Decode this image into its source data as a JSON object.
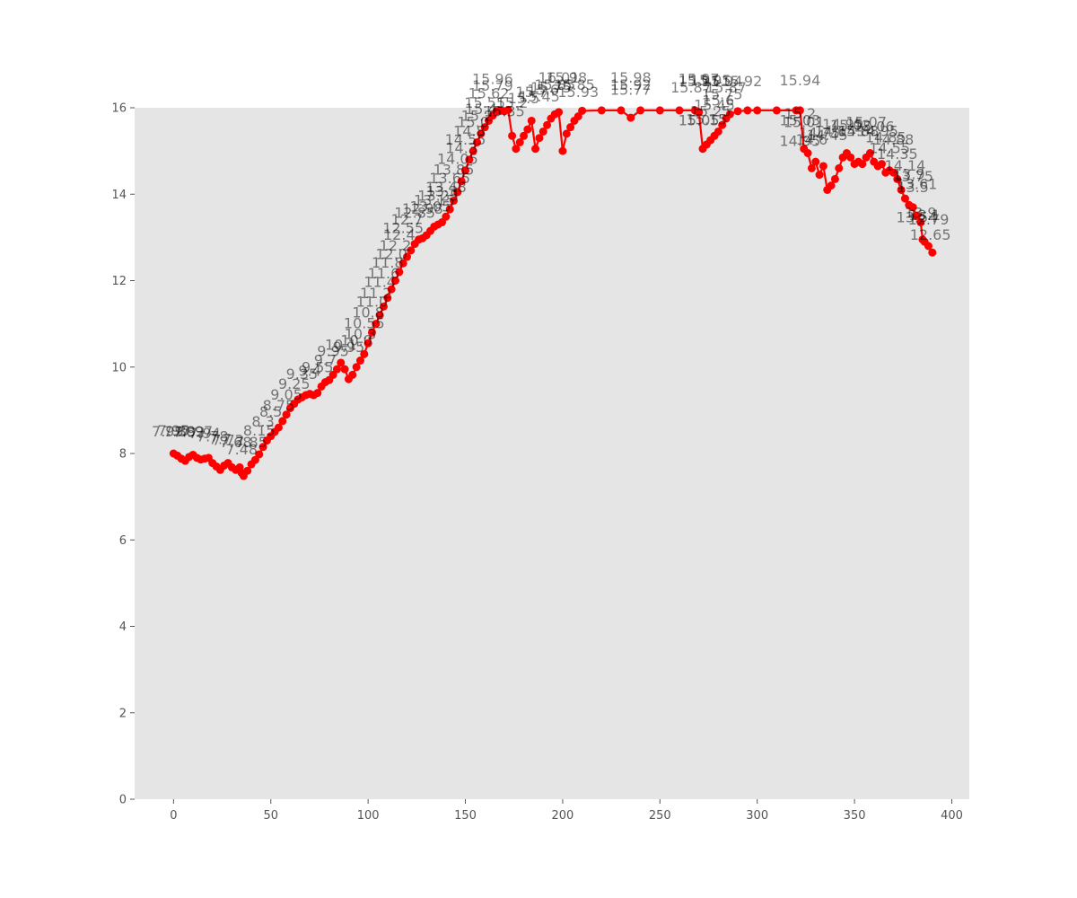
{
  "chart_data": {
    "type": "line",
    "title": "",
    "xlabel": "",
    "ylabel": "",
    "xlim": [
      -20,
      409
    ],
    "ylim": [
      0,
      16
    ],
    "xticks": [
      0,
      50,
      100,
      150,
      200,
      250,
      300,
      350,
      400
    ],
    "yticks": [
      0,
      2,
      4,
      6,
      8,
      10,
      12,
      14,
      16
    ],
    "grid": false,
    "legend": "none",
    "colors": {
      "background": "#e5e5e5",
      "series": "#ff0000",
      "tick_text": "#555555",
      "label_text": "#808080"
    },
    "series": [
      {
        "marker": "circle",
        "points": [
          [
            0,
            8.0
          ],
          [
            2,
            7.95
          ],
          [
            4,
            7.88
          ],
          [
            6,
            7.83
          ],
          [
            8,
            7.92
          ],
          [
            10,
            7.97
          ],
          [
            12,
            7.9
          ],
          [
            14,
            7.86
          ],
          [
            16,
            7.88
          ],
          [
            18,
            7.9
          ],
          [
            20,
            7.78
          ],
          [
            22,
            7.7
          ],
          [
            24,
            7.62
          ],
          [
            26,
            7.72
          ],
          [
            28,
            7.78
          ],
          [
            30,
            7.68
          ],
          [
            32,
            7.62
          ],
          [
            34,
            7.68
          ],
          [
            35,
            7.55
          ],
          [
            36,
            7.48
          ],
          [
            38,
            7.6
          ],
          [
            40,
            7.75
          ],
          [
            42,
            7.85
          ],
          [
            44,
            7.98
          ],
          [
            46,
            8.15
          ],
          [
            48,
            8.3
          ],
          [
            50,
            8.4
          ],
          [
            52,
            8.5
          ],
          [
            54,
            8.6
          ],
          [
            56,
            8.75
          ],
          [
            58,
            8.9
          ],
          [
            60,
            9.05
          ],
          [
            62,
            9.15
          ],
          [
            64,
            9.25
          ],
          [
            66,
            9.3
          ],
          [
            68,
            9.35
          ],
          [
            70,
            9.38
          ],
          [
            72,
            9.35
          ],
          [
            74,
            9.4
          ],
          [
            76,
            9.55
          ],
          [
            78,
            9.65
          ],
          [
            80,
            9.7
          ],
          [
            82,
            9.82
          ],
          [
            84,
            9.95
          ],
          [
            86,
            10.1
          ],
          [
            88,
            9.95
          ],
          [
            90,
            9.72
          ],
          [
            92,
            9.82
          ],
          [
            94,
            10.0
          ],
          [
            96,
            10.15
          ],
          [
            98,
            10.3
          ],
          [
            100,
            10.55
          ],
          [
            102,
            10.8
          ],
          [
            104,
            11.0
          ],
          [
            106,
            11.2
          ],
          [
            108,
            11.4
          ],
          [
            110,
            11.6
          ],
          [
            112,
            11.8
          ],
          [
            114,
            12.0
          ],
          [
            116,
            12.2
          ],
          [
            118,
            12.4
          ],
          [
            120,
            12.55
          ],
          [
            122,
            12.7
          ],
          [
            124,
            12.85
          ],
          [
            126,
            12.95
          ],
          [
            128,
            12.98
          ],
          [
            130,
            13.05
          ],
          [
            132,
            13.15
          ],
          [
            134,
            13.25
          ],
          [
            136,
            13.3
          ],
          [
            138,
            13.35
          ],
          [
            140,
            13.48
          ],
          [
            142,
            13.65
          ],
          [
            144,
            13.85
          ],
          [
            146,
            14.05
          ],
          [
            148,
            14.3
          ],
          [
            150,
            14.55
          ],
          [
            152,
            14.8
          ],
          [
            154,
            15.0
          ],
          [
            156,
            15.2
          ],
          [
            158,
            15.4
          ],
          [
            160,
            15.55
          ],
          [
            162,
            15.7
          ],
          [
            164,
            15.82
          ],
          [
            166,
            15.92
          ],
          [
            168,
            15.93
          ],
          [
            170,
            15.92
          ],
          [
            172,
            15.95
          ],
          [
            174,
            15.35
          ],
          [
            176,
            15.05
          ],
          [
            178,
            15.2
          ],
          [
            180,
            15.35
          ],
          [
            182,
            15.5
          ],
          [
            184,
            15.7
          ],
          [
            186,
            15.05
          ],
          [
            188,
            15.3
          ],
          [
            190,
            15.45
          ],
          [
            192,
            15.6
          ],
          [
            194,
            15.75
          ],
          [
            196,
            15.85
          ],
          [
            198,
            15.9
          ],
          [
            200,
            15.0
          ],
          [
            202,
            15.4
          ],
          [
            204,
            15.55
          ],
          [
            206,
            15.7
          ],
          [
            208,
            15.8
          ],
          [
            210,
            15.93
          ],
          [
            220,
            15.94
          ],
          [
            230,
            15.94
          ],
          [
            235,
            15.77
          ],
          [
            240,
            15.94
          ],
          [
            250,
            15.94
          ],
          [
            260,
            15.94
          ],
          [
            268,
            15.94
          ],
          [
            270,
            15.9
          ],
          [
            272,
            15.05
          ],
          [
            274,
            15.15
          ],
          [
            276,
            15.25
          ],
          [
            278,
            15.35
          ],
          [
            280,
            15.45
          ],
          [
            282,
            15.6
          ],
          [
            284,
            15.75
          ],
          [
            286,
            15.85
          ],
          [
            290,
            15.92
          ],
          [
            295,
            15.94
          ],
          [
            300,
            15.94
          ],
          [
            310,
            15.94
          ],
          [
            320,
            15.94
          ],
          [
            322,
            15.94
          ],
          [
            324,
            15.05
          ],
          [
            326,
            14.95
          ],
          [
            328,
            14.6
          ],
          [
            330,
            14.75
          ],
          [
            332,
            14.45
          ],
          [
            334,
            14.65
          ],
          [
            336,
            14.1
          ],
          [
            338,
            14.2
          ],
          [
            340,
            14.35
          ],
          [
            342,
            14.6
          ],
          [
            344,
            14.85
          ],
          [
            346,
            14.95
          ],
          [
            348,
            14.85
          ],
          [
            350,
            14.7
          ],
          [
            352,
            14.75
          ],
          [
            354,
            14.7
          ],
          [
            356,
            14.85
          ],
          [
            358,
            14.95
          ],
          [
            360,
            14.75
          ],
          [
            362,
            14.65
          ],
          [
            364,
            14.7
          ],
          [
            366,
            14.5
          ],
          [
            368,
            14.55
          ],
          [
            370,
            14.5
          ],
          [
            372,
            14.35
          ],
          [
            374,
            14.1
          ],
          [
            376,
            13.9
          ],
          [
            378,
            13.75
          ],
          [
            380,
            13.7
          ],
          [
            382,
            13.5
          ],
          [
            384,
            13.35
          ],
          [
            385,
            12.95
          ],
          [
            386,
            12.9
          ],
          [
            388,
            12.8
          ],
          [
            390,
            12.65
          ]
        ],
        "labels": [
          [
            "7.99",
            -3,
            8.4
          ],
          [
            "7.95",
            0,
            8.42
          ],
          [
            "7.88",
            3,
            8.4
          ],
          [
            "7.92",
            8,
            8.38
          ],
          [
            "7.97",
            12,
            8.4
          ],
          [
            "7.94",
            16,
            8.35
          ],
          [
            "7.78",
            20,
            8.28
          ],
          [
            "7.7",
            24,
            8.22
          ],
          [
            "7.72",
            28,
            8.2
          ],
          [
            "7.68",
            32,
            8.15
          ],
          [
            "7.48",
            35,
            7.98
          ],
          [
            "7.85",
            40,
            8.15
          ],
          [
            "8.15",
            44,
            8.42
          ],
          [
            "8.3",
            46,
            8.62
          ],
          [
            "8.5",
            50,
            8.85
          ],
          [
            "8.75",
            54,
            9.0
          ],
          [
            "9.05",
            58,
            9.25
          ],
          [
            "9.25",
            62,
            9.5
          ],
          [
            "9.35",
            66,
            9.72
          ],
          [
            "9.4",
            70,
            9.8
          ],
          [
            "9.55",
            74,
            9.88
          ],
          [
            "9.7",
            78,
            10.05
          ],
          [
            "9.95",
            82,
            10.25
          ],
          [
            "10.1",
            86,
            10.4
          ],
          [
            "9.95",
            90,
            10.35
          ],
          [
            "10.0",
            94,
            10.5
          ],
          [
            "10.3",
            96,
            10.65
          ],
          [
            "10.55",
            98,
            10.9
          ],
          [
            "10.8",
            100,
            11.15
          ],
          [
            "11.0",
            102,
            11.4
          ],
          [
            "11.2",
            104,
            11.6
          ],
          [
            "11.4",
            106,
            11.85
          ],
          [
            "11.6",
            108,
            12.05
          ],
          [
            "11.8",
            110,
            12.3
          ],
          [
            "12.0",
            112,
            12.5
          ],
          [
            "12.2",
            114,
            12.7
          ],
          [
            "12.4",
            116,
            12.95
          ],
          [
            "12.55",
            118,
            13.1
          ],
          [
            "12.7",
            120,
            13.3
          ],
          [
            "12.85",
            124,
            13.45
          ],
          [
            "12.98",
            128,
            13.55
          ],
          [
            "13.05",
            132,
            13.6
          ],
          [
            "13.15",
            134,
            13.75
          ],
          [
            "13.25",
            136,
            13.85
          ],
          [
            "13.3",
            138,
            13.95
          ],
          [
            "13.48",
            140,
            14.05
          ],
          [
            "13.65",
            142,
            14.25
          ],
          [
            "13.85",
            144,
            14.45
          ],
          [
            "14.05",
            146,
            14.7
          ],
          [
            "14.3",
            148,
            14.95
          ],
          [
            "14.55",
            150,
            15.15
          ],
          [
            "14.8",
            152,
            15.35
          ],
          [
            "15.0",
            154,
            15.55
          ],
          [
            "15.2",
            156,
            15.7
          ],
          [
            "15.4",
            158,
            15.85
          ],
          [
            "15.55",
            160,
            16.0
          ],
          [
            "15.62",
            162,
            16.22
          ],
          [
            "15.79",
            164,
            16.4
          ],
          [
            "15.96",
            164,
            16.55
          ],
          [
            "15.35",
            170,
            15.8
          ],
          [
            "15.2",
            174,
            16.0
          ],
          [
            "15.5",
            180,
            16.1
          ],
          [
            "15.7",
            184,
            16.25
          ],
          [
            "15.45",
            188,
            16.15
          ],
          [
            "15.6",
            190,
            16.3
          ],
          [
            "15.75",
            194,
            16.35
          ],
          [
            "15.85",
            196,
            16.42
          ],
          [
            "16.01",
            198,
            16.58
          ],
          [
            "15.98",
            202,
            16.58
          ],
          [
            "15.85",
            206,
            16.42
          ],
          [
            "15.93",
            208,
            16.25
          ],
          [
            "15.77",
            235,
            16.3
          ],
          [
            "15.92",
            235,
            16.42
          ],
          [
            "15.98",
            235,
            16.58
          ],
          [
            "15.87",
            266,
            16.35
          ],
          [
            "15.91",
            270,
            16.5
          ],
          [
            "15.97",
            270,
            16.55
          ],
          [
            "15.95",
            276,
            16.52
          ],
          [
            "15.94",
            282,
            16.5
          ],
          [
            "15.92",
            292,
            16.5
          ],
          [
            "15.87",
            284,
            16.35
          ],
          [
            "15.05",
            270,
            15.6
          ],
          [
            "15.15",
            274,
            15.62
          ],
          [
            "15.25",
            276,
            15.8
          ],
          [
            "15.45",
            278,
            15.95
          ],
          [
            "15.6",
            280,
            16.05
          ],
          [
            "15.75",
            282,
            16.2
          ],
          [
            "15.94",
            322,
            16.52
          ],
          [
            "15.2",
            322,
            15.75
          ],
          [
            "15.03",
            322,
            15.6
          ],
          [
            "15.01",
            324,
            15.55
          ],
          [
            "14.95",
            322,
            15.12
          ],
          [
            "14.6",
            328,
            15.15
          ],
          [
            "14.75",
            332,
            15.3
          ],
          [
            "14.45",
            336,
            15.25
          ],
          [
            "14.65",
            340,
            15.35
          ],
          [
            "14.95",
            344,
            15.5
          ],
          [
            "15.02",
            348,
            15.48
          ],
          [
            "14.88",
            352,
            15.35
          ],
          [
            "15.07",
            356,
            15.55
          ],
          [
            "15.06",
            360,
            15.45
          ],
          [
            "14.95",
            362,
            15.35
          ],
          [
            "14.85",
            366,
            15.2
          ],
          [
            "14.88",
            370,
            15.15
          ],
          [
            "14.55",
            368,
            14.95
          ],
          [
            "14.35",
            372,
            14.82
          ],
          [
            "14.14",
            376,
            14.55
          ],
          [
            "13.9",
            378,
            14.35
          ],
          [
            "13.75",
            380,
            14.3
          ],
          [
            "13.5",
            380,
            14.05
          ],
          [
            "13.61",
            382,
            14.12
          ],
          [
            "13.9",
            384,
            13.45
          ],
          [
            "13.54",
            382,
            13.35
          ],
          [
            "13.1",
            386,
            13.4
          ],
          [
            "12.79",
            388,
            13.3
          ],
          [
            "12.65",
            389,
            12.95
          ]
        ]
      }
    ]
  }
}
